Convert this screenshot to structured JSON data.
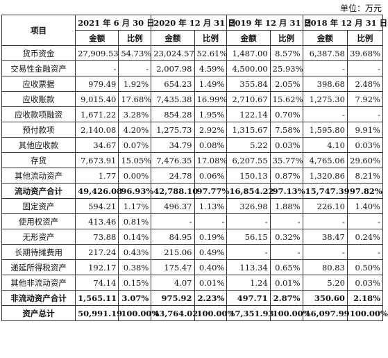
{
  "unit_label": "单位：万元",
  "header": {
    "item": "项目",
    "periods": [
      "2021 年 6 月 30 日",
      "2020 年 12 月 31 日",
      "2019 年 12 月 31 日",
      "2018 年 12 月 31 日"
    ],
    "amount": "金额",
    "ratio": "比例"
  },
  "rows": [
    {
      "label": "货币资金",
      "bold": false,
      "values": [
        "27,909.53",
        "54.73%",
        "23,024.57",
        "52.61%",
        "1,487.00",
        "8.57%",
        "6,387.58",
        "39.68%"
      ]
    },
    {
      "label": "交易性金融资产",
      "bold": false,
      "values": [
        "-",
        "-",
        "2,007.98",
        "4.59%",
        "4,500.00",
        "25.93%",
        "-",
        "-"
      ]
    },
    {
      "label": "应收票据",
      "bold": false,
      "values": [
        "979.49",
        "1.92%",
        "654.23",
        "1.49%",
        "355.84",
        "2.05%",
        "398.68",
        "2.48%"
      ]
    },
    {
      "label": "应收账款",
      "bold": false,
      "values": [
        "9,015.40",
        "17.68%",
        "7,435.38",
        "16.99%",
        "2,710.67",
        "15.62%",
        "1,275.30",
        "7.92%"
      ]
    },
    {
      "label": "应收款项融资",
      "bold": false,
      "values": [
        "1,671.22",
        "3.28%",
        "854.28",
        "1.95%",
        "122.14",
        "0.70%",
        "-",
        "-"
      ]
    },
    {
      "label": "预付款项",
      "bold": false,
      "values": [
        "2,140.08",
        "4.20%",
        "1,275.73",
        "2.92%",
        "1,315.67",
        "7.58%",
        "1,595.80",
        "9.91%"
      ]
    },
    {
      "label": "其他应收款",
      "bold": false,
      "values": [
        "34.67",
        "0.07%",
        "34.79",
        "0.08%",
        "5.22",
        "0.03%",
        "4.10",
        "0.03%"
      ]
    },
    {
      "label": "存货",
      "bold": false,
      "values": [
        "7,673.91",
        "15.05%",
        "7,476.35",
        "17.08%",
        "6,207.55",
        "35.77%",
        "4,765.06",
        "29.60%"
      ]
    },
    {
      "label": "其他流动资产",
      "bold": false,
      "values": [
        "1.77",
        "0.00%",
        "24.78",
        "0.06%",
        "150.13",
        "0.87%",
        "1,320.86",
        "8.21%"
      ]
    },
    {
      "label": "流动资产合计",
      "bold": true,
      "values": [
        "49,426.08",
        "96.93%",
        "42,788.10",
        "97.77%",
        "16,854.22",
        "97.13%",
        "15,747.39",
        "97.82%"
      ]
    },
    {
      "label": "固定资产",
      "bold": false,
      "values": [
        "594.21",
        "1.17%",
        "496.37",
        "1.13%",
        "326.98",
        "1.88%",
        "226.10",
        "1.40%"
      ]
    },
    {
      "label": "使用权资产",
      "bold": false,
      "values": [
        "413.46",
        "0.81%",
        "-",
        "-",
        "-",
        "-",
        "-",
        "-"
      ]
    },
    {
      "label": "无形资产",
      "bold": false,
      "values": [
        "73.88",
        "0.14%",
        "84.95",
        "0.19%",
        "56.15",
        "0.32%",
        "38.47",
        "0.24%"
      ]
    },
    {
      "label": "长期待摊费用",
      "bold": false,
      "values": [
        "217.24",
        "0.43%",
        "215.06",
        "0.49%",
        "-",
        "-",
        "-",
        "-"
      ]
    },
    {
      "label": "递延所得税资产",
      "bold": false,
      "values": [
        "192.17",
        "0.38%",
        "175.47",
        "0.40%",
        "113.34",
        "0.65%",
        "80.83",
        "0.50%"
      ]
    },
    {
      "label": "其他非流动资产",
      "bold": false,
      "values": [
        "74.14",
        "0.15%",
        "4.07",
        "0.01%",
        "1.24",
        "0.01%",
        "5.20",
        "0.03%"
      ]
    },
    {
      "label": "非流动资产合计",
      "bold": true,
      "values": [
        "1,565.11",
        "3.07%",
        "975.92",
        "2.23%",
        "497.71",
        "2.87%",
        "350.60",
        "2.18%"
      ]
    },
    {
      "label": "资产总计",
      "bold": true,
      "values": [
        "50,991.19",
        "100.00%",
        "43,764.02",
        "100.00%",
        "17,351.93",
        "100.00%",
        "16,097.99",
        "100.00%"
      ]
    }
  ]
}
